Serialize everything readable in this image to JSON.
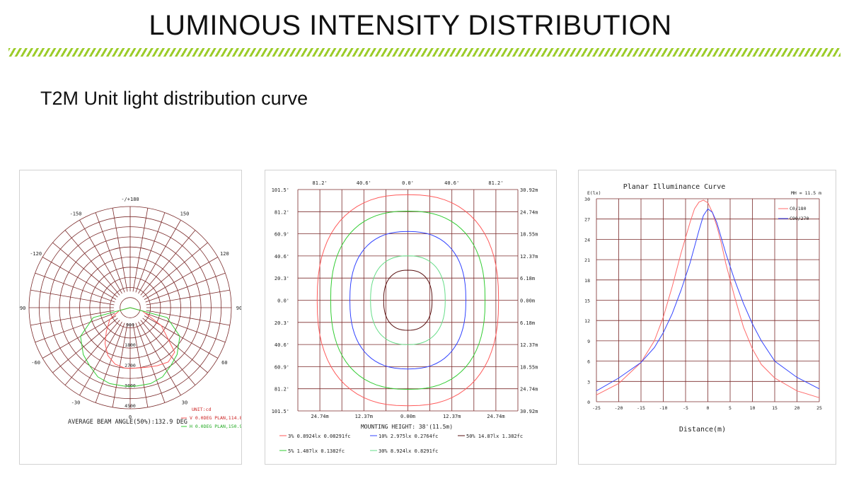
{
  "header": {
    "title": "LUMINOUS INTENSITY DISTRIBUTION",
    "subtitle": "T2M Unit light distribution curve"
  },
  "colors": {
    "accent": "#9ccc2a",
    "grid": "#7a2a2a",
    "red": "#ff5a5a",
    "green": "#33cc33",
    "blue": "#3344ff",
    "brown": "#5a1010",
    "lightgreen": "#66dd88"
  },
  "chart_data": [
    {
      "type": "polar",
      "angle_labels": [
        "-/+180",
        "150",
        "120",
        "90",
        "60",
        "30",
        "0",
        "-30",
        "-60",
        "-90",
        "-120",
        "-150"
      ],
      "radial_ticks": [
        "900",
        "1800",
        "2700",
        "3600",
        "4500"
      ],
      "unit_label": "UNIT:cd",
      "footer": "AVERAGE BEAM ANGLE(50%):132.9 DEG",
      "series": [
        {
          "name": "V 0.0DEG PLAN,114.8°",
          "color": "#ff5a5a",
          "angles": [
            -90,
            -75,
            -60,
            -45,
            -35,
            -25,
            -15,
            -5,
            0,
            5,
            15,
            25,
            35,
            45,
            60,
            75,
            90
          ],
          "values": [
            0,
            500,
            1050,
            1500,
            1950,
            2350,
            2600,
            2700,
            2700,
            2700,
            2750,
            2850,
            2950,
            2800,
            1600,
            550,
            0
          ]
        },
        {
          "name": "H 0.0DEG PLAN,150.9°",
          "color": "#33cc33",
          "angles": [
            -90,
            -75,
            -60,
            -45,
            -35,
            -25,
            -15,
            -5,
            0,
            5,
            15,
            25,
            35,
            45,
            60,
            75,
            90
          ],
          "values": [
            0,
            1700,
            2550,
            2950,
            3150,
            3400,
            3500,
            3500,
            3500,
            3500,
            3500,
            3400,
            3150,
            2950,
            2550,
            1700,
            0
          ]
        }
      ]
    },
    {
      "type": "isolux",
      "top_labels": [
        "81.2'",
        "40.6'",
        "0.0'",
        "40.6'",
        "81.2'"
      ],
      "left_labels": [
        "101.5'",
        "81.2'",
        "60.9'",
        "40.6'",
        "20.3'",
        "0.0'",
        "20.3'",
        "40.6'",
        "60.9'",
        "81.2'",
        "101.5'"
      ],
      "right_labels": [
        "30.92m",
        "24.74m",
        "18.55m",
        "12.37m",
        "6.18m",
        "0.00m",
        "6.18m",
        "12.37m",
        "18.55m",
        "24.74m",
        "30.92m"
      ],
      "bottom_labels": [
        "24.74m",
        "12.37m",
        "0.00m",
        "12.37m",
        "24.74m"
      ],
      "xlabel": "MOUNTING HEIGHT: 38'(11.5m)",
      "series": [
        {
          "name": "3% 0.8924lx 0.08291fc",
          "color": "#ff5a5a",
          "rx": 25.5,
          "ry": 29.5
        },
        {
          "name": "10% 2.975lx 0.2764fc",
          "color": "#3344ff",
          "rx": 16.3,
          "ry": 19.2
        },
        {
          "name": "50% 14.87lx 1.382fc",
          "color": "#5a1010",
          "rx": 6.8,
          "ry": 8.4
        },
        {
          "name": "5% 1.487lx 0.1382fc",
          "color": "#33cc33",
          "rx": 21.7,
          "ry": 24.9
        },
        {
          "name": "30% 8.924lx 0.8291fc",
          "color": "#66dd88",
          "rx": 10.5,
          "ry": 12.4
        }
      ]
    },
    {
      "type": "line",
      "title": "Planar Illuminance Curve",
      "ylabel": "E(lx)",
      "xlabel": "Distance(m)",
      "mh_label": "MH = 11.5 m",
      "xlim": [
        -25,
        25
      ],
      "ylim": [
        0,
        30
      ],
      "x_ticks": [
        "-25",
        "-20",
        "-15",
        "-10",
        "-5",
        "0",
        "5",
        "10",
        "15",
        "20",
        "25"
      ],
      "y_ticks": [
        "0",
        "3",
        "6",
        "9",
        "12",
        "15",
        "18",
        "21",
        "24",
        "27",
        "30"
      ],
      "series": [
        {
          "name": "C0/180",
          "color": "#ff6b6b",
          "x": [
            -25,
            -20,
            -15,
            -12,
            -10,
            -8,
            -6,
            -4,
            -3,
            -2,
            -1,
            0,
            1,
            2,
            3,
            4,
            6,
            8,
            10,
            12,
            15,
            20,
            25
          ],
          "y": [
            1.0,
            2.7,
            5.8,
            9.0,
            12.5,
            17.0,
            22.0,
            26.5,
            28.5,
            29.5,
            29.8,
            29.4,
            28.0,
            26.0,
            23.5,
            20.5,
            15.5,
            11.0,
            7.8,
            5.5,
            3.5,
            1.6,
            0.6
          ]
        },
        {
          "name": "C90/270",
          "color": "#3344ff",
          "x": [
            -25,
            -20,
            -15,
            -12,
            -10,
            -8,
            -6,
            -4,
            -2,
            -1,
            0,
            1,
            2,
            4,
            6,
            8,
            10,
            12,
            15,
            20,
            25
          ],
          "y": [
            1.6,
            3.5,
            5.8,
            8.0,
            10.2,
            13.0,
            16.5,
            20.5,
            25.3,
            27.5,
            28.5,
            28.0,
            26.5,
            22.0,
            18.0,
            14.5,
            11.5,
            9.0,
            6.0,
            3.6,
            1.9
          ]
        }
      ]
    }
  ]
}
